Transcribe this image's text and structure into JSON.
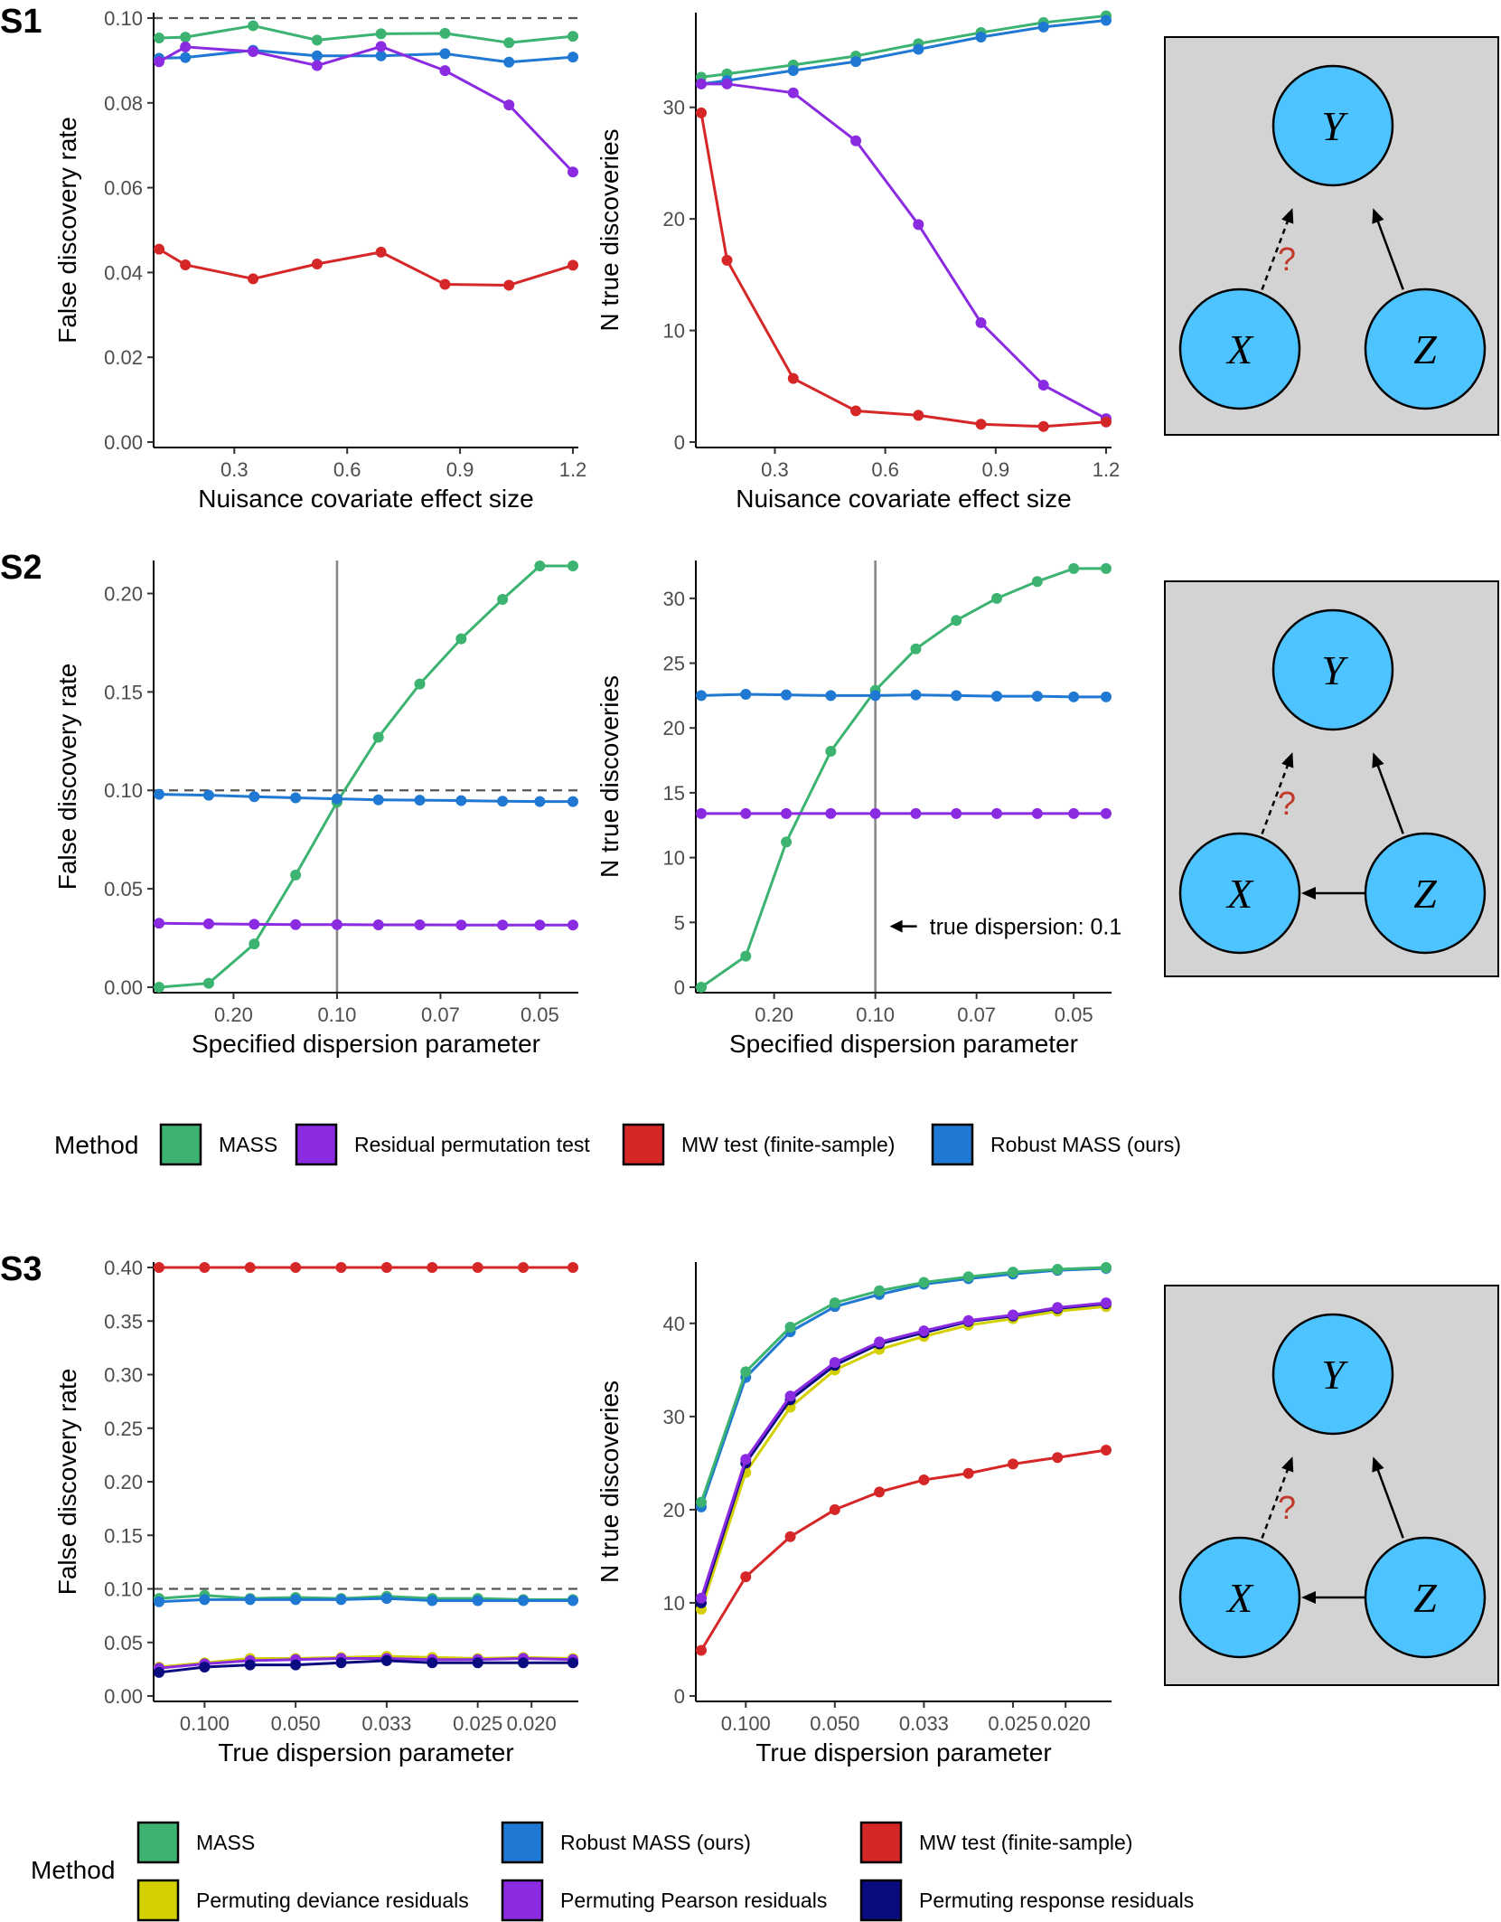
{
  "rows": [
    {
      "tag": "S1"
    },
    {
      "tag": "S2"
    },
    {
      "tag": "S3"
    }
  ],
  "colors": {
    "MASS": "#3cb371",
    "Robust MASS (ours)": "#1f78d1",
    "Residual permutation test": "#8a2be2",
    "MW test (finite-sample)": "#d62728",
    "Permuting deviance residuals": "#d4d000",
    "Permuting Pearson residuals": "#8a2be2",
    "Permuting response residuals": "#0b0b80",
    "ref_line": "#555555",
    "vline": "#888888",
    "dag_bg": "#d3d3d3",
    "node_fill": "#4dc3ff",
    "qmark": "#c0392b"
  },
  "chart_data": [
    {
      "id": "s1-fdr",
      "type": "line",
      "ylabel": "False discovery rate",
      "xlabel": "Nuisance covariate effect size",
      "xlim": [
        0.1,
        1.2
      ],
      "ylim": [
        0,
        0.1
      ],
      "xticks": [
        0.3,
        0.6,
        0.9,
        1.2
      ],
      "xticklabels": [
        "0.3",
        "0.6",
        "0.9",
        "1.2"
      ],
      "yticks": [
        0,
        0.02,
        0.04,
        0.06,
        0.08,
        0.1
      ],
      "yticklabels": [
        "0.00",
        "0.02",
        "0.04",
        "0.06",
        "0.08",
        "0.10"
      ],
      "hline": 0.1,
      "x": [
        0.1,
        0.17,
        0.35,
        0.52,
        0.69,
        0.86,
        1.03,
        1.2
      ],
      "series": [
        {
          "name": "MASS",
          "values": [
            0.0953,
            0.0955,
            0.0982,
            0.0948,
            0.0963,
            0.0964,
            0.0942,
            0.0957
          ]
        },
        {
          "name": "Robust MASS (ours)",
          "values": [
            0.0905,
            0.0907,
            0.0924,
            0.0911,
            0.0911,
            0.0916,
            0.0896,
            0.0908
          ]
        },
        {
          "name": "Residual permutation test",
          "values": [
            0.0897,
            0.0932,
            0.0921,
            0.0888,
            0.0933,
            0.0876,
            0.0795,
            0.0637
          ]
        },
        {
          "name": "MW test (finite-sample)",
          "values": [
            0.0455,
            0.0418,
            0.0385,
            0.042,
            0.0448,
            0.0372,
            0.037,
            0.0417
          ]
        }
      ]
    },
    {
      "id": "s1-ntd",
      "type": "line",
      "ylabel": "N true discoveries",
      "xlabel": "Nuisance covariate effect size",
      "xlim": [
        0.1,
        1.2
      ],
      "ylim": [
        0,
        38
      ],
      "xticks": [
        0.3,
        0.6,
        0.9,
        1.2
      ],
      "xticklabels": [
        "0.3",
        "0.6",
        "0.9",
        "1.2"
      ],
      "yticks": [
        0,
        10,
        20,
        30
      ],
      "yticklabels": [
        "0",
        "10",
        "20",
        "30"
      ],
      "x": [
        0.1,
        0.17,
        0.35,
        0.52,
        0.69,
        0.86,
        1.03,
        1.2
      ],
      "series": [
        {
          "name": "MASS",
          "values": [
            32.7,
            33.0,
            33.8,
            34.6,
            35.7,
            36.7,
            37.6,
            38.2
          ]
        },
        {
          "name": "Robust MASS (ours)",
          "values": [
            32.1,
            32.4,
            33.3,
            34.1,
            35.2,
            36.3,
            37.2,
            37.8
          ]
        },
        {
          "name": "Residual permutation test",
          "values": [
            32.1,
            32.1,
            31.3,
            27.0,
            19.5,
            10.7,
            5.1,
            2.1
          ]
        },
        {
          "name": "MW test (finite-sample)",
          "values": [
            29.5,
            16.3,
            5.7,
            2.8,
            2.4,
            1.6,
            1.4,
            1.8
          ]
        }
      ]
    },
    {
      "id": "s2-fdr",
      "type": "line",
      "ylabel": "False discovery rate",
      "xlabel": "Specified dispersion parameter",
      "xlim": [
        0,
        10
      ],
      "ylim": [
        0,
        0.214
      ],
      "xticks": [
        1.8,
        4.3,
        6.8,
        9.2
      ],
      "xticklabels": [
        "0.20",
        "0.10",
        "0.07",
        "0.05"
      ],
      "yticks": [
        0,
        0.05,
        0.1,
        0.15,
        0.2
      ],
      "yticklabels": [
        "0.00",
        "0.05",
        "0.10",
        "0.15",
        "0.20"
      ],
      "hline": 0.1,
      "vline": 4.3,
      "x": [
        0,
        1.2,
        2.3,
        3.3,
        4.3,
        5.3,
        6.3,
        7.3,
        8.3,
        9.2,
        10
      ],
      "series": [
        {
          "name": "MASS",
          "values": [
            0.0,
            0.002,
            0.022,
            0.057,
            0.094,
            0.127,
            0.154,
            0.177,
            0.197,
            0.214,
            0.214
          ]
        },
        {
          "name": "Robust MASS (ours)",
          "values": [
            0.098,
            0.0975,
            0.0968,
            0.0962,
            0.0957,
            0.0952,
            0.095,
            0.0948,
            0.0945,
            0.0943,
            0.0943
          ]
        },
        {
          "name": "Residual permutation test",
          "values": [
            0.0325,
            0.0322,
            0.032,
            0.0318,
            0.0318,
            0.0317,
            0.0317,
            0.0316,
            0.0316,
            0.0316,
            0.0316
          ]
        }
      ]
    },
    {
      "id": "s2-ntd",
      "type": "line",
      "ylabel": "N true discoveries",
      "xlabel": "Specified dispersion parameter",
      "xlim": [
        0,
        10
      ],
      "ylim": [
        0,
        32.5
      ],
      "xticks": [
        1.8,
        4.3,
        6.8,
        9.2
      ],
      "xticklabels": [
        "0.20",
        "0.10",
        "0.07",
        "0.05"
      ],
      "yticks": [
        0,
        5,
        10,
        15,
        20,
        25,
        30
      ],
      "yticklabels": [
        "0",
        "5",
        "10",
        "15",
        "20",
        "25",
        "30"
      ],
      "vline": 4.3,
      "annotation": "true dispersion: 0.1",
      "x": [
        0,
        1.1,
        2.1,
        3.2,
        4.3,
        5.3,
        6.3,
        7.3,
        8.3,
        9.2,
        10
      ],
      "series": [
        {
          "name": "MASS",
          "values": [
            0.0,
            2.4,
            11.2,
            18.2,
            22.9,
            26.1,
            28.3,
            30.0,
            31.3,
            32.3,
            32.3
          ]
        },
        {
          "name": "Robust MASS (ours)",
          "values": [
            22.5,
            22.6,
            22.55,
            22.5,
            22.5,
            22.55,
            22.5,
            22.45,
            22.45,
            22.4,
            22.4
          ]
        },
        {
          "name": "Residual permutation test",
          "values": [
            13.4,
            13.4,
            13.4,
            13.4,
            13.4,
            13.4,
            13.4,
            13.4,
            13.4,
            13.4,
            13.4
          ]
        }
      ]
    },
    {
      "id": "s3-fdr",
      "type": "line",
      "ylabel": "False discovery rate",
      "xlabel": "True dispersion parameter",
      "xlim": [
        0,
        10
      ],
      "ylim": [
        0,
        0.4
      ],
      "xticks": [
        1.1,
        3.3,
        5.5,
        7.7,
        9.0
      ],
      "xticklabels": [
        "0.100",
        "0.050",
        "0.033",
        "0.025",
        "0.020"
      ],
      "yticks": [
        0,
        0.05,
        0.1,
        0.15,
        0.2,
        0.25,
        0.3,
        0.35,
        0.4
      ],
      "yticklabels": [
        "0.00",
        "0.05",
        "0.10",
        "0.15",
        "0.20",
        "0.25",
        "0.30",
        "0.35",
        "0.40"
      ],
      "hline": 0.1,
      "x": [
        0,
        1.1,
        2.2,
        3.3,
        4.4,
        5.5,
        6.6,
        7.7,
        8.8,
        10
      ],
      "series": [
        {
          "name": "MW test (finite-sample)",
          "values": [
            0.4,
            0.4,
            0.4,
            0.4,
            0.4,
            0.4,
            0.4,
            0.4,
            0.4,
            0.4
          ]
        },
        {
          "name": "MASS",
          "values": [
            0.091,
            0.094,
            0.091,
            0.092,
            0.091,
            0.093,
            0.091,
            0.091,
            0.09,
            0.09
          ]
        },
        {
          "name": "Robust MASS (ours)",
          "values": [
            0.088,
            0.09,
            0.09,
            0.09,
            0.09,
            0.091,
            0.089,
            0.089,
            0.089,
            0.089
          ]
        },
        {
          "name": "Permuting deviance residuals",
          "values": [
            0.027,
            0.031,
            0.035,
            0.035,
            0.036,
            0.037,
            0.036,
            0.035,
            0.036,
            0.035
          ]
        },
        {
          "name": "Permuting Pearson residuals",
          "values": [
            0.026,
            0.03,
            0.033,
            0.034,
            0.035,
            0.035,
            0.034,
            0.034,
            0.035,
            0.034
          ]
        },
        {
          "name": "Permuting response residuals",
          "values": [
            0.022,
            0.027,
            0.029,
            0.029,
            0.031,
            0.033,
            0.031,
            0.031,
            0.031,
            0.031
          ]
        }
      ]
    },
    {
      "id": "s3-ntd",
      "type": "line",
      "ylabel": "N true discoveries",
      "xlabel": "True dispersion parameter",
      "xlim": [
        0,
        10
      ],
      "ylim": [
        0,
        46
      ],
      "xticks": [
        1.1,
        3.3,
        5.5,
        7.7,
        9.0
      ],
      "xticklabels": [
        "0.100",
        "0.050",
        "0.033",
        "0.025",
        "0.020"
      ],
      "yticks": [
        0,
        10,
        20,
        30,
        40
      ],
      "yticklabels": [
        "0",
        "10",
        "20",
        "30",
        "40"
      ],
      "x": [
        0,
        1.1,
        2.2,
        3.3,
        4.4,
        5.5,
        6.6,
        7.7,
        8.8,
        10
      ],
      "series": [
        {
          "name": "MW test (finite-sample)",
          "values": [
            4.9,
            12.8,
            17.1,
            20.0,
            21.9,
            23.2,
            23.9,
            24.9,
            25.6,
            26.4
          ]
        },
        {
          "name": "Permuting deviance residuals",
          "values": [
            9.3,
            24.0,
            31.0,
            35.0,
            37.2,
            38.6,
            39.8,
            40.5,
            41.3,
            41.8
          ]
        },
        {
          "name": "Permuting response residuals",
          "values": [
            10.0,
            25.0,
            31.8,
            35.5,
            37.8,
            39.0,
            40.2,
            40.8,
            41.6,
            42.1
          ]
        },
        {
          "name": "Permuting Pearson residuals",
          "values": [
            10.5,
            25.4,
            32.2,
            35.8,
            38.0,
            39.2,
            40.3,
            40.9,
            41.7,
            42.2
          ]
        },
        {
          "name": "Robust MASS (ours)",
          "values": [
            20.3,
            34.2,
            39.1,
            41.8,
            43.1,
            44.2,
            44.8,
            45.3,
            45.7,
            45.9
          ]
        },
        {
          "name": "MASS",
          "values": [
            20.8,
            34.8,
            39.6,
            42.2,
            43.5,
            44.4,
            45.0,
            45.5,
            45.8,
            46.0
          ]
        }
      ]
    }
  ],
  "dags": [
    {
      "id": "dag1",
      "y": "Y",
      "x": "X",
      "z": "Z",
      "question": "?",
      "z_to_x": false
    },
    {
      "id": "dag2",
      "y": "Y",
      "x": "X",
      "z": "Z",
      "question": "?",
      "z_to_x": true
    },
    {
      "id": "dag3",
      "y": "Y",
      "x": "X",
      "z": "Z",
      "question": "?",
      "z_to_x": true
    }
  ],
  "legends": [
    {
      "title": "Method",
      "items": [
        "MASS",
        "Residual permutation test",
        "MW test (finite-sample)",
        "Robust MASS (ours)"
      ]
    },
    {
      "title": "Method",
      "items": [
        "MASS",
        "Robust MASS (ours)",
        "MW test (finite-sample)",
        "Permuting deviance residuals",
        "Permuting Pearson residuals",
        "Permuting response residuals"
      ]
    }
  ]
}
